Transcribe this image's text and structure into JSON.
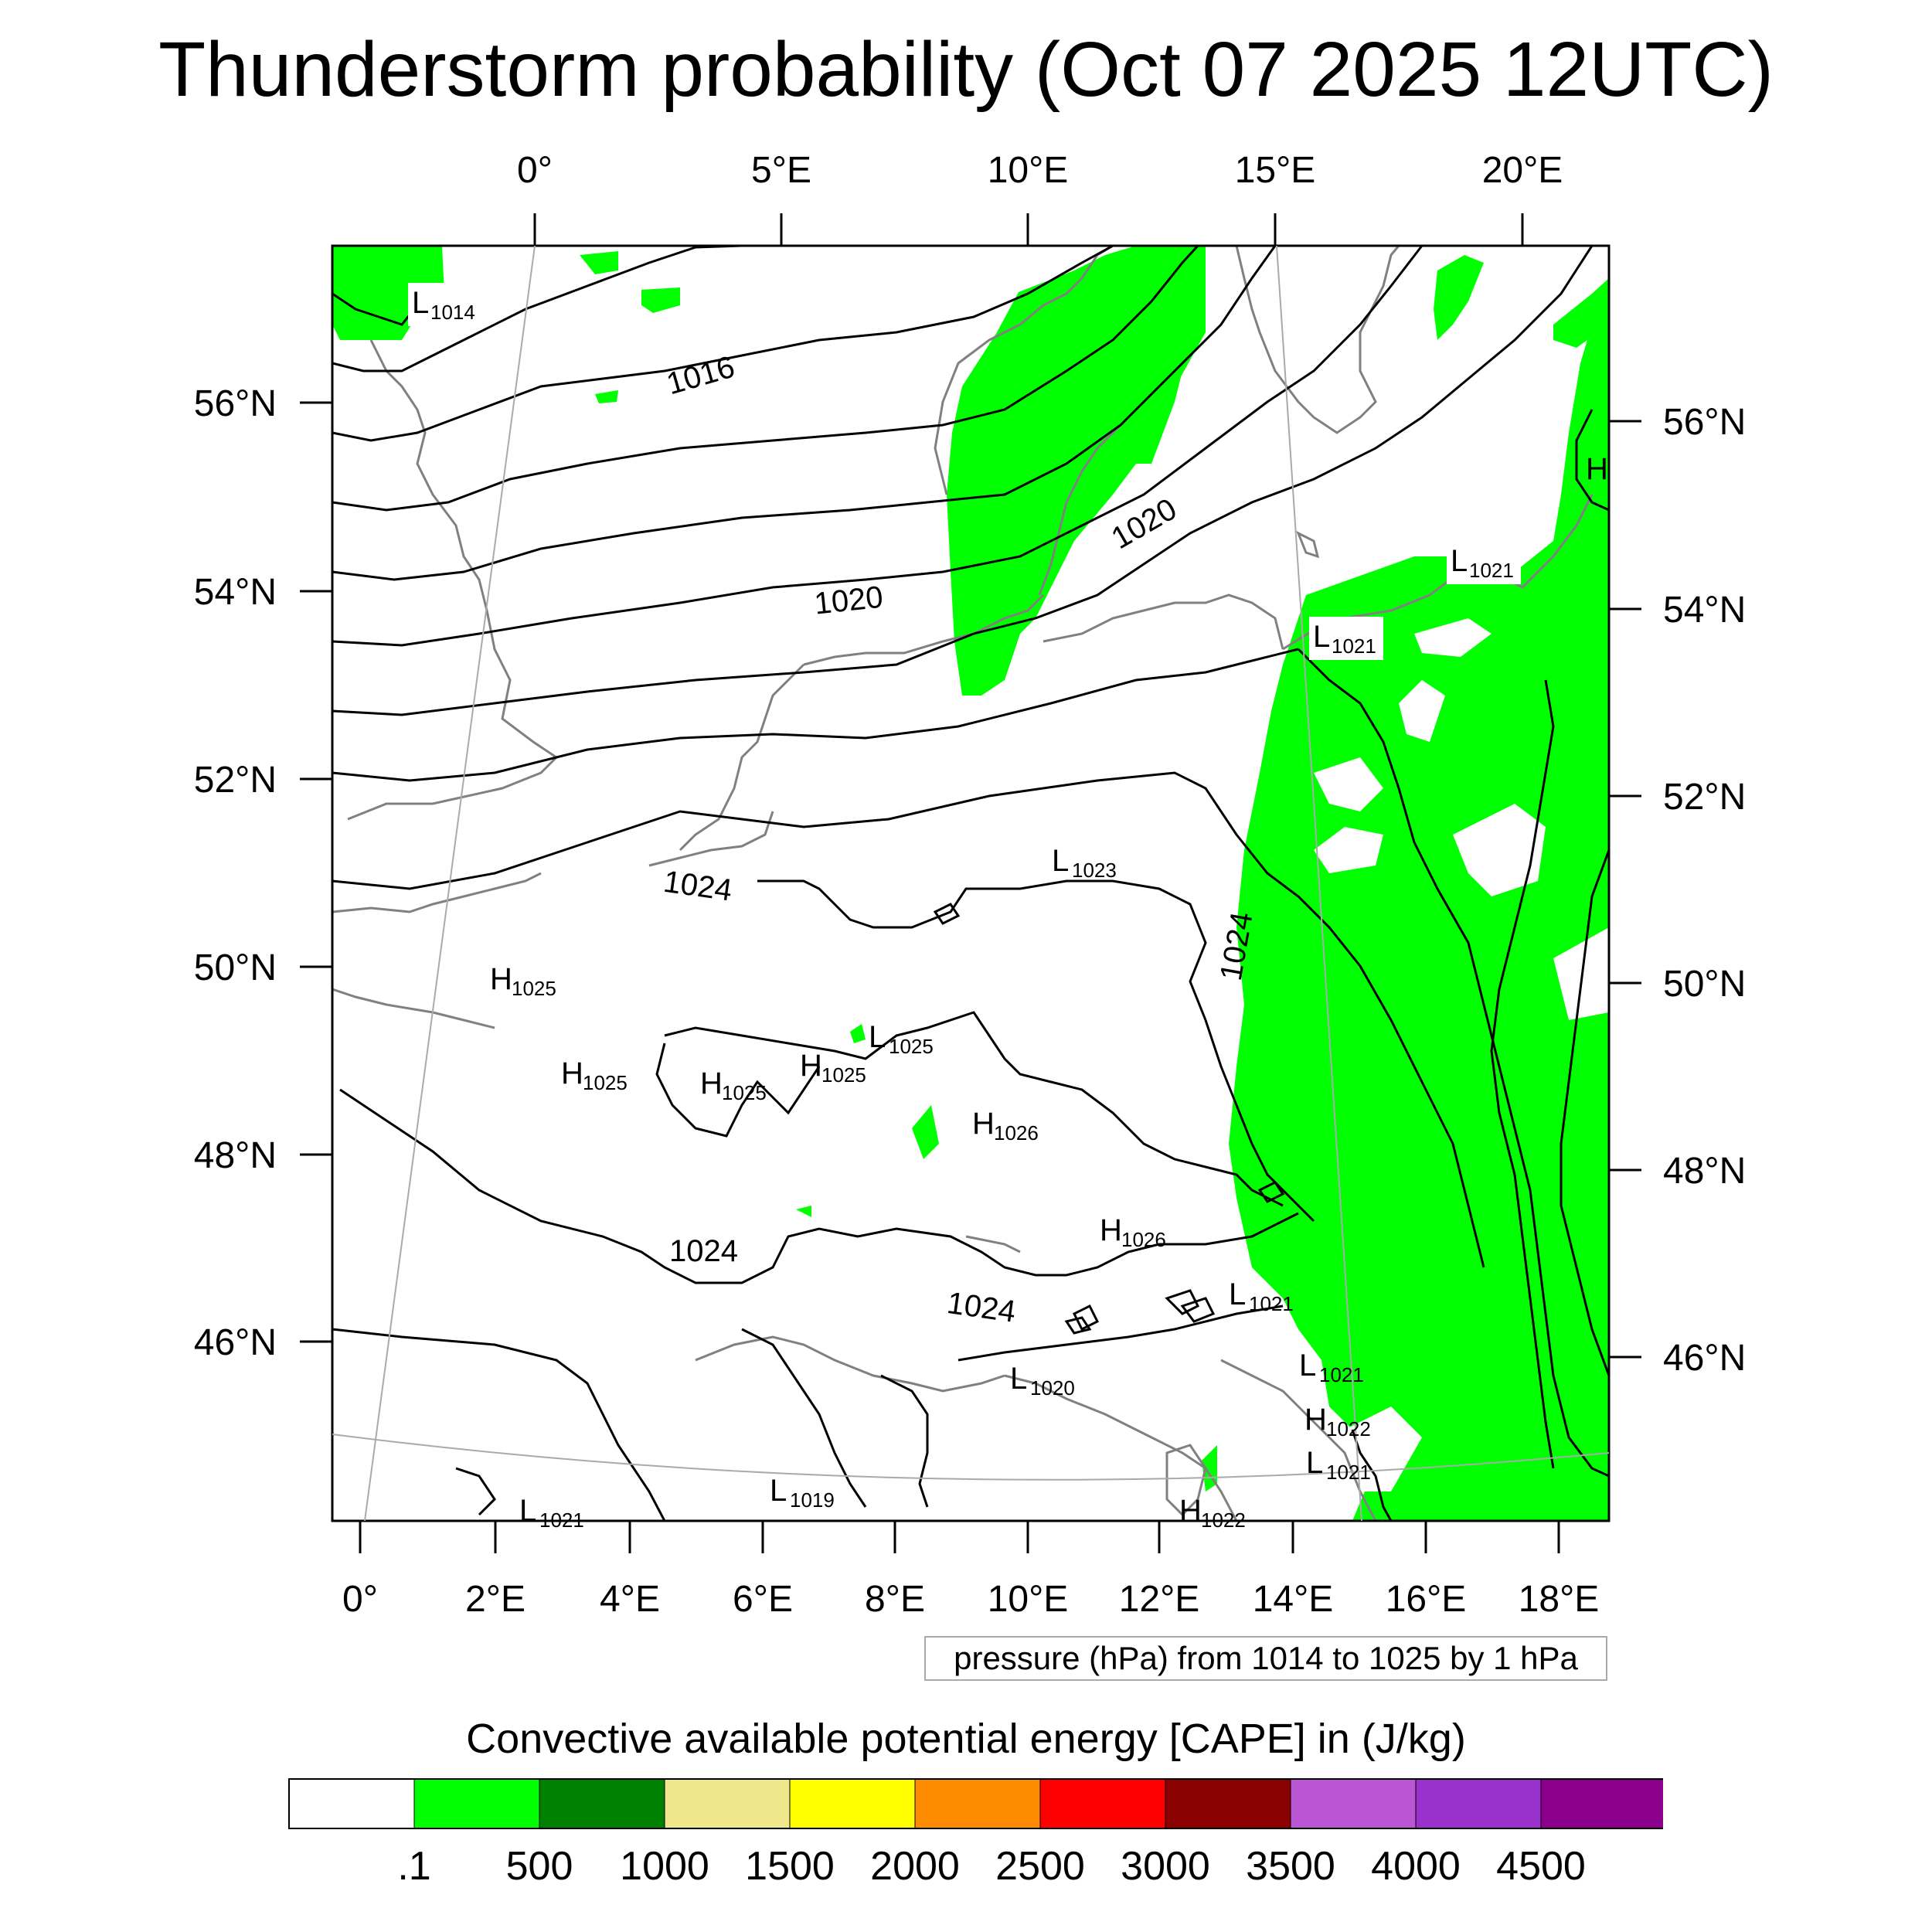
{
  "title": "Thunderstorm probability (Oct 07 2025 12UTC)",
  "map": {
    "colors": {
      "cape_fill": "#00ff00",
      "coastline": "#808080",
      "isobar": "#000000",
      "graticule": "#aaaaaa"
    },
    "top_lon_labels": [
      "0°",
      "5°E",
      "10°E",
      "15°E",
      "20°E"
    ],
    "bottom_lon_labels": [
      "0°",
      "2°E",
      "4°E",
      "6°E",
      "8°E",
      "10°E",
      "12°E",
      "14°E",
      "16°E",
      "18°E"
    ],
    "left_lat_labels": [
      "56°N",
      "54°N",
      "52°N",
      "50°N",
      "48°N",
      "46°N"
    ],
    "right_lat_labels": [
      "56°N",
      "54°N",
      "52°N",
      "50°N",
      "48°N",
      "46°N"
    ],
    "isobar_labels": [
      "1016",
      "1020",
      "1020",
      "1024",
      "1024",
      "1024",
      "1024"
    ],
    "pressure_centers": [
      {
        "type": "L",
        "value": "1014"
      },
      {
        "type": "L",
        "value": "1021"
      },
      {
        "type": "L",
        "value": "1021"
      },
      {
        "type": "L",
        "value": "1023"
      },
      {
        "type": "H",
        "value": "1025"
      },
      {
        "type": "H",
        "value": "1025"
      },
      {
        "type": "H",
        "value": "1025"
      },
      {
        "type": "H",
        "value": "1025"
      },
      {
        "type": "L",
        "value": "1025"
      },
      {
        "type": "H",
        "value": "1026"
      },
      {
        "type": "H",
        "value": "1026"
      },
      {
        "type": "L",
        "value": "1021"
      },
      {
        "type": "L",
        "value": "1021"
      },
      {
        "type": "L",
        "value": "1020"
      },
      {
        "type": "H",
        "value": "1022"
      },
      {
        "type": "L",
        "value": "1021"
      },
      {
        "type": "L",
        "value": "1019"
      },
      {
        "type": "L",
        "value": "1021"
      },
      {
        "type": "H",
        "value": "1022"
      },
      {
        "type": "H",
        "value": ""
      }
    ]
  },
  "contour_caption": "pressure (hPa) from 1014 to 1025 by 1 hPa",
  "colorbar": {
    "title": "Convective available potential energy [CAPE] in (J/kg)",
    "colors": [
      "#ffffff",
      "#00ff00",
      "#008000",
      "#f0e68c",
      "#ffff00",
      "#ff8c00",
      "#ff0000",
      "#8b0000",
      "#ba55d3",
      "#9932cc",
      "#8b008b"
    ],
    "labels": [
      ".1",
      "500",
      "1000",
      "1500",
      "2000",
      "2500",
      "3000",
      "3500",
      "4000",
      "4500"
    ]
  }
}
